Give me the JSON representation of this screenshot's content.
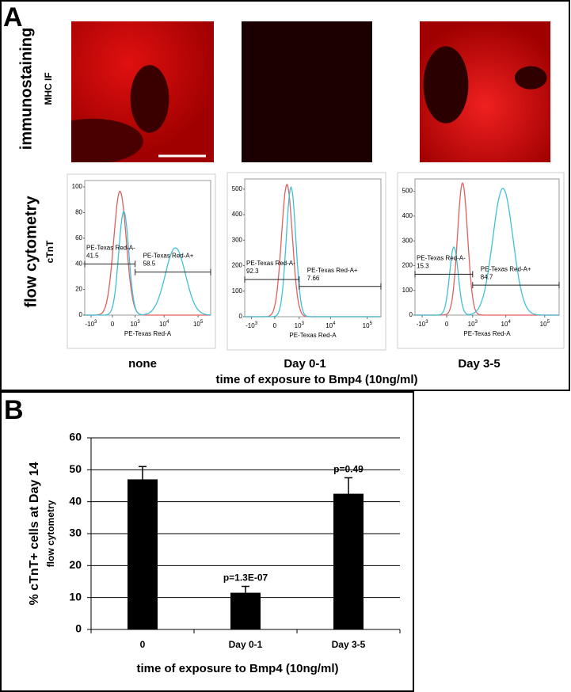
{
  "panel_a": {
    "letter": "A",
    "row_labels": [
      {
        "main": "immunostaining",
        "sub": "MHC IF"
      },
      {
        "main": "flow cytometry",
        "sub": "cTnT"
      }
    ],
    "flow_panels": [
      {
        "ylim": [
          0,
          105
        ],
        "yticks": [
          0,
          20,
          40,
          60,
          80,
          100
        ],
        "xticks": [
          {
            "base": "-10",
            "exp": "3"
          },
          {
            "base": "0"
          },
          {
            "base": "10",
            "exp": "3"
          },
          {
            "base": "10",
            "exp": "4"
          },
          {
            "base": "10",
            "exp": "5"
          }
        ],
        "x_label": "PE-Texas Red-A",
        "gates": [
          {
            "label": "PE-Texas Red-A-",
            "value": 41.5
          },
          {
            "label": "PE-Texas Red-A+",
            "value": 58.5
          }
        ]
      },
      {
        "ylim": [
          0,
          540
        ],
        "yticks": [
          0,
          100,
          200,
          300,
          400,
          500
        ],
        "xticks": [
          {
            "base": "-10",
            "exp": "3"
          },
          {
            "base": "0"
          },
          {
            "base": "10",
            "exp": "3"
          },
          {
            "base": "10",
            "exp": "4"
          },
          {
            "base": "10",
            "exp": "5"
          }
        ],
        "x_label": "PE-Texas Red-A",
        "gates": [
          {
            "label": "PE-Texas Red-A-",
            "value": 92.3
          },
          {
            "label": "PE-Texas Red-A+",
            "value": 7.66
          }
        ]
      },
      {
        "ylim": [
          0,
          550
        ],
        "yticks": [
          0,
          100,
          200,
          300,
          400,
          500
        ],
        "xticks": [
          {
            "base": "-10",
            "exp": "3"
          },
          {
            "base": "0"
          },
          {
            "base": "10",
            "exp": "3"
          },
          {
            "base": "10",
            "exp": "4"
          },
          {
            "base": "10",
            "exp": "5"
          }
        ],
        "x_label": "PE-Texas Red-A",
        "gates": [
          {
            "label": "PE-Texas Red-A-",
            "value": 15.3
          },
          {
            "label": "PE-Texas Red-A+",
            "value": 84.7
          }
        ]
      }
    ],
    "conditions": [
      "none",
      "Day 0-1",
      "Day 3-5"
    ],
    "x_title": "time of exposure to Bmp4 (10ng/ml)"
  },
  "chart_data": {
    "type": "bar",
    "letter": "B",
    "y_label": "% cTnT+ cells at Day 14",
    "y_sublabel": "flow cytometry",
    "x_label": "time of exposure to Bmp4 (10ng/ml)",
    "categories": [
      "0",
      "Day 0-1",
      "Day 3-5"
    ],
    "values": [
      47,
      11.5,
      42.5
    ],
    "errors": [
      4,
      2,
      5
    ],
    "p_values": [
      null,
      "p=1.3E-07",
      "p=0.49"
    ],
    "color": "#000000",
    "ylim": [
      0,
      60
    ],
    "yticks": [
      0,
      10,
      20,
      30,
      40,
      50,
      60
    ],
    "grid": true
  }
}
